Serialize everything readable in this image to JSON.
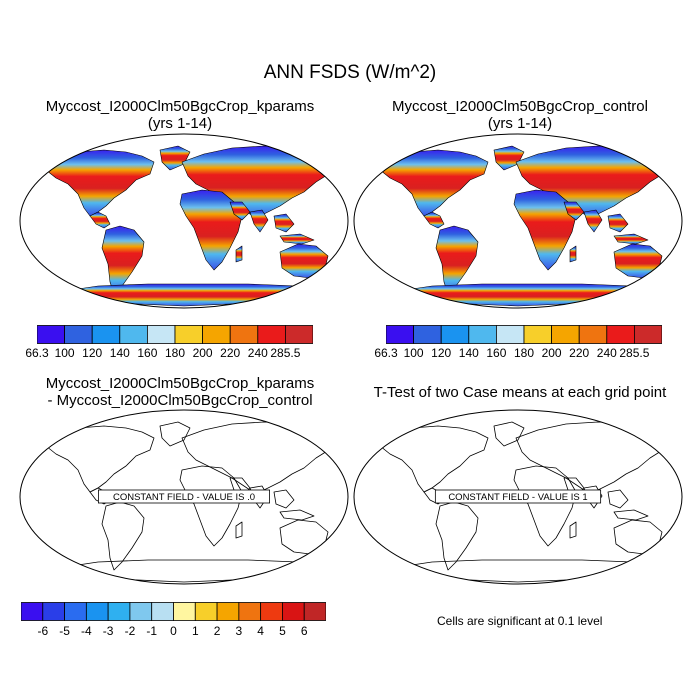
{
  "figure_title": "ANN FSDS (W/m^2)",
  "panels": [
    {
      "title_line1": "Myccost_I2000Clm50BgcCrop_kparams",
      "title_line2": "(yrs 1-14)"
    },
    {
      "title_line1": "Myccost_I2000Clm50BgcCrop_control",
      "title_line2": "(yrs 1-14)"
    },
    {
      "title_line1": "Myccost_I2000Clm50BgcCrop_kparams",
      "title_line2": "- Myccost_I2000Clm50BgcCrop_control",
      "field_message": "CONSTANT FIELD - VALUE IS .0"
    },
    {
      "title_line1": "T-Test of two Case means at each grid point",
      "field_message": "CONSTANT FIELD - VALUE IS 1",
      "note": "Cells are significant at 0.1 level"
    }
  ],
  "colorbar_abs": {
    "labels": [
      "66.3",
      "100",
      "120",
      "140",
      "160",
      "180",
      "200",
      "220",
      "240",
      "285.5"
    ],
    "colors": [
      "#3a0ff0",
      "#2f62e0",
      "#1a93f0",
      "#4fb8ee",
      "#c6e6f5",
      "#f7cf2a",
      "#f5a500",
      "#ef7410",
      "#ea1b1b",
      "#cc2a2a"
    ]
  },
  "colorbar_diff": {
    "labels": [
      "-6",
      "-5",
      "-4",
      "-3",
      "-2",
      "-1",
      "0",
      "1",
      "2",
      "3",
      "4",
      "5",
      "6"
    ],
    "colors": [
      "#3a0ff0",
      "#2a3ee8",
      "#2a6cf0",
      "#1a93f0",
      "#2fb0f0",
      "#7fc8ee",
      "#b8dff2",
      "#fff6a0",
      "#f7cf2a",
      "#f5a500",
      "#ef7410",
      "#ee3a10",
      "#d91414",
      "#c02626"
    ]
  }
}
